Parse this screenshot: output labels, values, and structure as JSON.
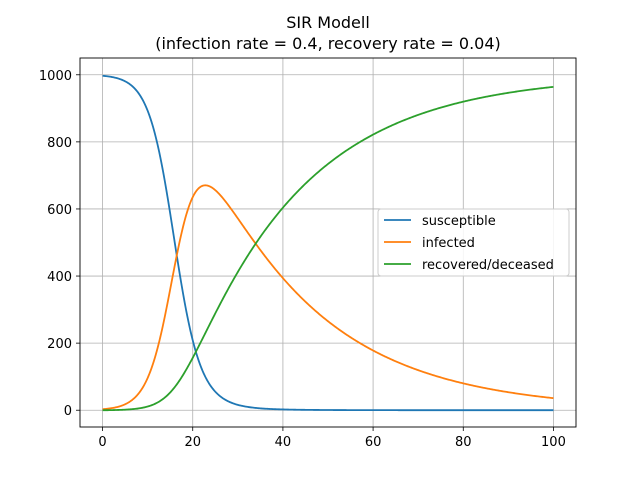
{
  "chart_data": {
    "type": "line",
    "title_line1": "SIR Modell",
    "title_line2": "(infection rate = 0.4, recovery rate = 0.04)",
    "xlabel": "",
    "ylabel": "",
    "xlim": [
      -5,
      105
    ],
    "ylim": [
      -50,
      1050
    ],
    "xticks": [
      0,
      20,
      40,
      60,
      80,
      100
    ],
    "yticks": [
      0,
      200,
      400,
      600,
      800,
      1000
    ],
    "grid": true,
    "legend_position": "center-right",
    "model": {
      "population": 1000,
      "initial_infected": 3,
      "infection_rate": 0.4,
      "recovery_rate": 0.04,
      "t_start": 0,
      "t_end": 100
    },
    "series": [
      {
        "name": "susceptible",
        "color": "#1f77b4",
        "samples": {
          "x": [
            0,
            5,
            10,
            15,
            20,
            25,
            30,
            40,
            60,
            80,
            100
          ],
          "y": [
            997,
            973,
            791,
            380,
            134,
            40,
            12,
            2,
            0,
            0,
            0
          ]
        }
      },
      {
        "name": "infected",
        "color": "#ff7f0e",
        "samples": {
          "x": [
            0,
            5,
            10,
            15,
            20,
            22.5,
            25,
            30,
            40,
            60,
            80,
            100
          ],
          "y": [
            3,
            21,
            150,
            470,
            650,
            670,
            660,
            590,
            400,
            180,
            80,
            35
          ]
        }
      },
      {
        "name": "recovered/deceased",
        "color": "#2ca02c",
        "samples": {
          "x": [
            0,
            5,
            10,
            15,
            20,
            25,
            30,
            40,
            60,
            80,
            100
          ],
          "y": [
            0,
            3,
            30,
            130,
            240,
            340,
            420,
            600,
            820,
            920,
            965
          ]
        }
      }
    ]
  }
}
